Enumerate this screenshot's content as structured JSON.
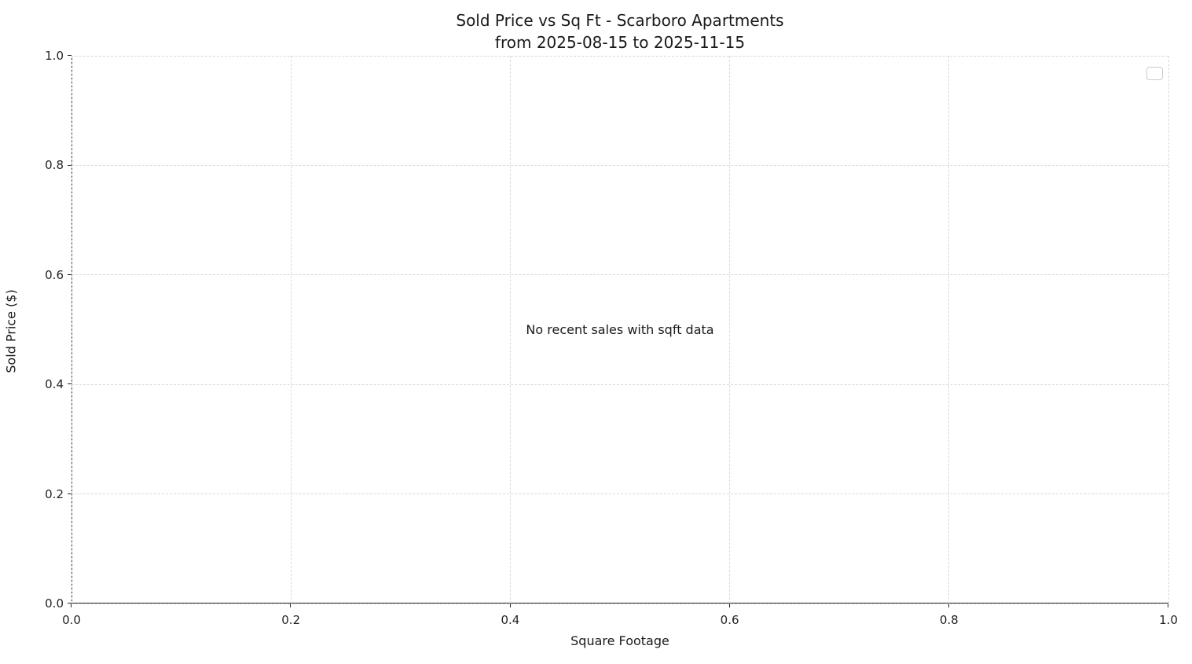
{
  "chart_data": {
    "type": "scatter",
    "title": "Sold Price vs Sq Ft - Scarboro Apartments",
    "subtitle": "from 2025-08-15 to 2025-11-15",
    "xlabel": "Square Footage",
    "ylabel": "Sold Price ($)",
    "xlim": [
      0.0,
      1.0
    ],
    "ylim": [
      0.0,
      1.0
    ],
    "xticks": [
      "0.0",
      "0.2",
      "0.4",
      "0.6",
      "0.8",
      "1.0"
    ],
    "yticks": [
      "0.0",
      "0.2",
      "0.4",
      "0.6",
      "0.8",
      "1.0"
    ],
    "points": [],
    "annotation": "No recent sales with sqft data",
    "grid": true,
    "grid_style": "dashed",
    "legend": {
      "visible": true,
      "entries": []
    },
    "colors": {
      "background": "#ffffff",
      "text": "#1a1a1a",
      "spine": "#262626",
      "grid": "#d9d9d9",
      "legend_border": "#cccccc"
    }
  }
}
